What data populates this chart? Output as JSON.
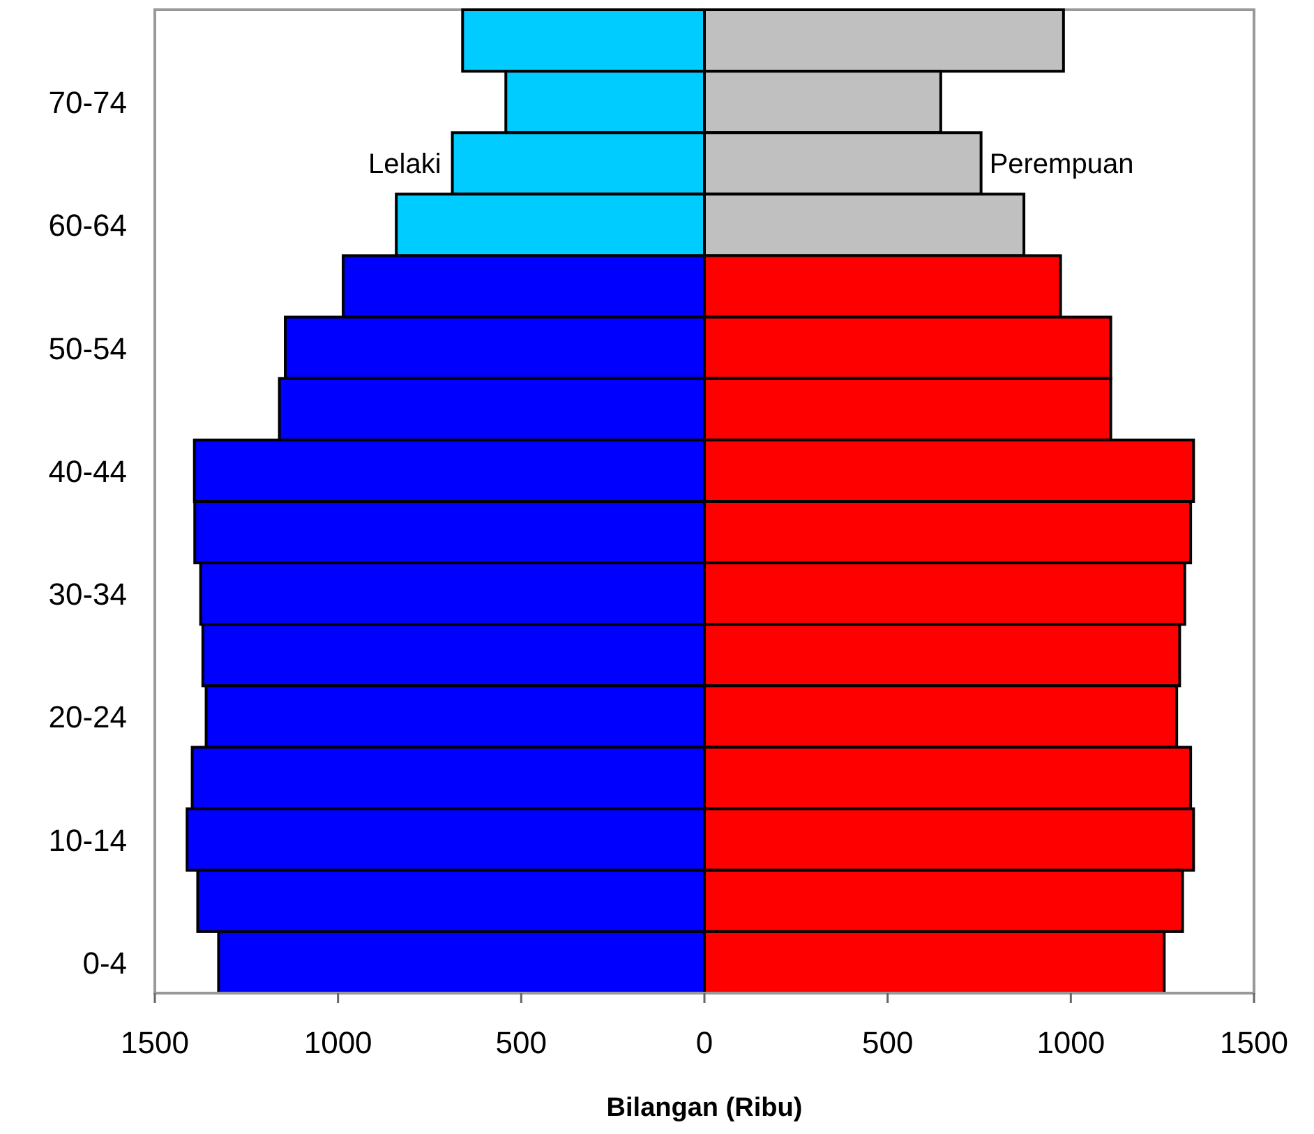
{
  "chart_data": {
    "type": "bar",
    "orientation": "horizontal",
    "stacked": true,
    "xlabel": "Bilangan (Ribu)",
    "categories": [
      null,
      "70-74",
      null,
      "60-64",
      null,
      "50-54",
      null,
      "40-44",
      null,
      "30-34",
      null,
      "20-24",
      null,
      "10-14",
      null,
      "0-4"
    ],
    "series": [
      {
        "name": "Lelaki",
        "colors": [
          "#00ccff",
          "#00ccff",
          "#00ccff",
          "#00ccff",
          "#0000ff",
          "#0000ff",
          "#0000ff",
          "#0000ff",
          "#0000ff",
          "#0000ff",
          "#0000ff",
          "#0000ff",
          "#0000ff",
          "#0000ff",
          "#0000ff",
          "#0000ff"
        ],
        "values": [
          -660,
          -542,
          -688,
          -841,
          -986,
          -1144,
          -1160,
          -1392,
          -1391,
          -1375,
          -1369,
          -1360,
          -1398,
          -1412,
          -1383,
          -1326
        ]
      },
      {
        "name": "Perempuan",
        "colors": [
          "#c0c0c0",
          "#c0c0c0",
          "#c0c0c0",
          "#c0c0c0",
          "#ff0000",
          "#ff0000",
          "#ff0000",
          "#ff0000",
          "#ff0000",
          "#ff0000",
          "#ff0000",
          "#ff0000",
          "#ff0000",
          "#ff0000",
          "#ff0000",
          "#ff0000"
        ],
        "values": [
          980,
          645,
          755,
          872,
          972,
          1109,
          1109,
          1335,
          1327,
          1311,
          1297,
          1289,
          1327,
          1335,
          1305,
          1255
        ]
      }
    ],
    "xlim": [
      -1500,
      1500
    ],
    "xticks": [
      {
        "value": -1500,
        "label": "1500"
      },
      {
        "value": -1000,
        "label": "1000"
      },
      {
        "value": -500,
        "label": "500"
      },
      0,
      500,
      1000,
      1500
    ],
    "grid": false
  }
}
